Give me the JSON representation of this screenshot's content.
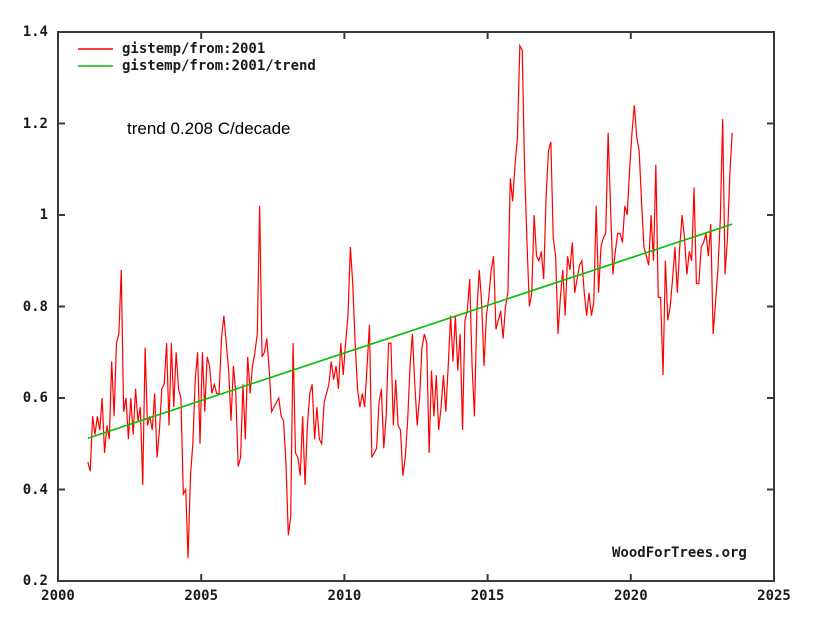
{
  "chart_data": {
    "type": "line",
    "title": "",
    "xlabel": "",
    "ylabel": "",
    "annotation": "trend 0.208 C/decade",
    "watermark": "WoodForTrees.org",
    "grid": false,
    "legend_position": "top-left",
    "xlim": [
      2000,
      2025
    ],
    "ylim": [
      0.2,
      1.4
    ],
    "x_ticks": [
      {
        "v": 2000,
        "label": "2000"
      },
      {
        "v": 2005,
        "label": "2005"
      },
      {
        "v": 2010,
        "label": "2010"
      },
      {
        "v": 2015,
        "label": "2015"
      },
      {
        "v": 2020,
        "label": "2020"
      },
      {
        "v": 2025,
        "label": "2025"
      }
    ],
    "y_ticks": [
      {
        "v": 0.2,
        "label": "0.2"
      },
      {
        "v": 0.4,
        "label": "0.4"
      },
      {
        "v": 0.6,
        "label": "0.6"
      },
      {
        "v": 0.8,
        "label": "0.8"
      },
      {
        "v": 1.0,
        "label": "1"
      },
      {
        "v": 1.2,
        "label": "1.2"
      },
      {
        "v": 1.4,
        "label": "1.4"
      }
    ],
    "colors": {
      "series": "#ff0000",
      "trend": "#00c000",
      "frame": "#3a3a3a",
      "text": "#1a1a1a",
      "background": "#ffffff"
    },
    "x_start": 2001.0417,
    "x_interval": 0.0833333,
    "series": [
      {
        "name": "gistemp/from:2001",
        "color": "#ff0000",
        "kind": "monthly-data",
        "values": [
          0.46,
          0.44,
          0.56,
          0.52,
          0.56,
          0.53,
          0.6,
          0.48,
          0.54,
          0.51,
          0.68,
          0.56,
          0.72,
          0.74,
          0.88,
          0.57,
          0.6,
          0.51,
          0.6,
          0.52,
          0.62,
          0.55,
          0.58,
          0.41,
          0.71,
          0.54,
          0.56,
          0.53,
          0.61,
          0.47,
          0.53,
          0.62,
          0.63,
          0.72,
          0.54,
          0.72,
          0.58,
          0.7,
          0.62,
          0.6,
          0.39,
          0.4,
          0.25,
          0.43,
          0.5,
          0.64,
          0.7,
          0.5,
          0.7,
          0.57,
          0.69,
          0.67,
          0.61,
          0.63,
          0.61,
          0.61,
          0.73,
          0.78,
          0.72,
          0.66,
          0.55,
          0.67,
          0.61,
          0.45,
          0.47,
          0.63,
          0.51,
          0.69,
          0.61,
          0.67,
          0.7,
          0.74,
          1.02,
          0.69,
          0.7,
          0.73,
          0.66,
          0.57,
          0.58,
          0.59,
          0.6,
          0.56,
          0.55,
          0.46,
          0.3,
          0.34,
          0.72,
          0.48,
          0.47,
          0.43,
          0.56,
          0.41,
          0.54,
          0.61,
          0.63,
          0.51,
          0.58,
          0.51,
          0.5,
          0.59,
          0.61,
          0.63,
          0.68,
          0.64,
          0.67,
          0.62,
          0.72,
          0.65,
          0.72,
          0.78,
          0.93,
          0.85,
          0.72,
          0.62,
          0.58,
          0.61,
          0.58,
          0.67,
          0.76,
          0.47,
          0.48,
          0.49,
          0.59,
          0.62,
          0.49,
          0.56,
          0.72,
          0.72,
          0.54,
          0.64,
          0.54,
          0.53,
          0.43,
          0.47,
          0.55,
          0.67,
          0.74,
          0.63,
          0.54,
          0.6,
          0.71,
          0.74,
          0.72,
          0.48,
          0.66,
          0.56,
          0.65,
          0.53,
          0.58,
          0.65,
          0.57,
          0.67,
          0.78,
          0.68,
          0.78,
          0.66,
          0.74,
          0.53,
          0.77,
          0.79,
          0.86,
          0.67,
          0.56,
          0.79,
          0.88,
          0.81,
          0.67,
          0.78,
          0.82,
          0.88,
          0.91,
          0.75,
          0.77,
          0.79,
          0.73,
          0.8,
          0.83,
          1.08,
          1.03,
          1.11,
          1.17,
          1.37,
          1.36,
          1.1,
          0.94,
          0.8,
          0.83,
          1.0,
          0.91,
          0.9,
          0.92,
          0.86,
          1.04,
          1.14,
          1.16,
          0.95,
          0.91,
          0.74,
          0.82,
          0.88,
          0.78,
          0.91,
          0.88,
          0.94,
          0.83,
          0.86,
          0.89,
          0.9,
          0.83,
          0.78,
          0.83,
          0.78,
          0.81,
          1.02,
          0.83,
          0.93,
          0.95,
          0.96,
          1.18,
          1.02,
          0.87,
          0.92,
          0.96,
          0.96,
          0.94,
          1.02,
          1.0,
          1.1,
          1.18,
          1.24,
          1.17,
          1.14,
          1.03,
          0.93,
          0.91,
          0.89,
          1.0,
          0.9,
          1.11,
          0.82,
          0.82,
          0.65,
          0.9,
          0.77,
          0.8,
          0.86,
          0.93,
          0.83,
          0.93,
          1.0,
          0.95,
          0.87,
          0.92,
          0.9,
          1.06,
          0.85,
          0.85,
          0.93,
          0.94,
          0.96,
          0.91,
          0.98,
          0.74,
          0.81,
          0.88,
          0.99,
          1.21,
          0.87,
          0.95,
          1.09,
          1.18
        ]
      },
      {
        "name": "gistemp/from:2001/trend",
        "color": "#00c000",
        "kind": "trend-line",
        "trend_c_per_decade": 0.208,
        "x1": 2001.0417,
        "y1": 0.512,
        "x2": 2023.5417,
        "y2": 0.98
      }
    ]
  }
}
